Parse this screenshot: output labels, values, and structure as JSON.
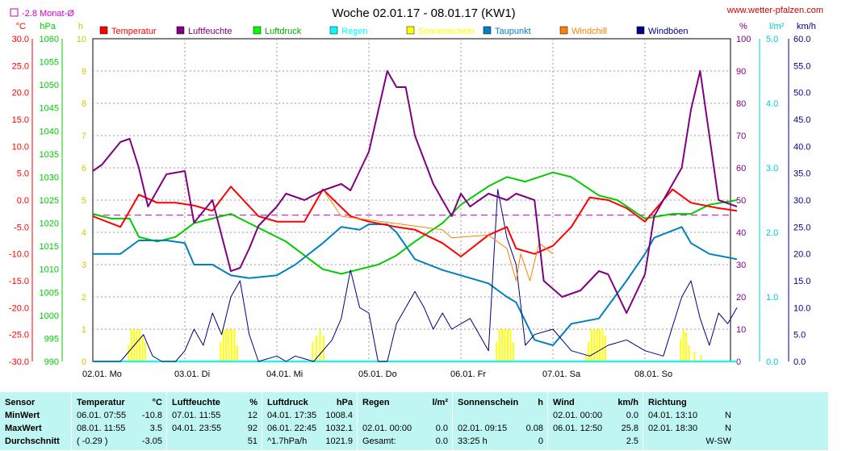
{
  "header": {
    "title": "Woche 02.01.17 - 08.01.17 (KW1)",
    "site": "www.wetter-pfalzen.com",
    "monthavg_label": "-2.8 Monat-Ø"
  },
  "axes": {
    "temp": {
      "unit": "°C",
      "ticks": [
        "30.0",
        "25.0",
        "20.0",
        "15.0",
        "10.0",
        "5.0",
        "0.0",
        "-5.0",
        "-10.0",
        "-15.0",
        "-20.0",
        "-25.0",
        "-30.0"
      ],
      "color": "#ff0000"
    },
    "press": {
      "unit": "hPa",
      "ticks": [
        "1060",
        "1055",
        "1050",
        "1045",
        "1040",
        "1035",
        "1030",
        "1025",
        "1020",
        "1015",
        "1010",
        "1005",
        "1000",
        "995",
        "990"
      ],
      "color": "#00cc00"
    },
    "sun": {
      "unit": "h",
      "ticks": [
        "10",
        "9",
        "8",
        "7",
        "6",
        "5",
        "4",
        "3",
        "2",
        "1",
        "0"
      ],
      "color": "#cccc00"
    },
    "hum": {
      "unit": "%",
      "ticks": [
        "100",
        "90",
        "80",
        "70",
        "60",
        "50",
        "40",
        "30",
        "20",
        "10",
        "0"
      ],
      "color": "#800080"
    },
    "rain": {
      "unit": "l/m²",
      "ticks": [
        "5.0",
        "4.0",
        "3.0",
        "2.0",
        "1.0",
        "0.0"
      ],
      "color": "#00cccc"
    },
    "wind": {
      "unit": "km/h",
      "ticks": [
        "60.0",
        "55.0",
        "50.0",
        "45.0",
        "40.0",
        "35.0",
        "30.0",
        "25.0",
        "20.0",
        "15.0",
        "10.0",
        "5.0",
        "0.0"
      ],
      "color": "#000080"
    }
  },
  "legend": [
    {
      "label": "Temperatur",
      "color": "#ff0000"
    },
    {
      "label": "Luftfeuchte",
      "color": "#800080"
    },
    {
      "label": "Luftdruck",
      "color": "#00ff00"
    },
    {
      "label": "Regen",
      "color": "#00ffff"
    },
    {
      "label": "Sonnenschein",
      "color": "#ffff00"
    },
    {
      "label": "Taupunkt",
      "color": "#0080c0"
    },
    {
      "label": "Windchill",
      "color": "#ff8000"
    },
    {
      "label": "Windböen",
      "color": "#000080"
    }
  ],
  "chart_data": {
    "type": "line",
    "title": "Woche 02.01.17 - 08.01.17 (KW1)",
    "x_categories": [
      "02.01. Mo",
      "03.01. Di",
      "04.01. Mi",
      "05.01. Do",
      "06.01. Fr",
      "07.01. Sa",
      "08.01. So"
    ],
    "xlim_days": [
      0,
      7
    ],
    "monthly_avg_temp": -2.8,
    "series": [
      {
        "name": "Temperatur",
        "axis": "temp",
        "color": "#ff0000",
        "t": [
          0,
          0.3,
          0.5,
          0.7,
          0.9,
          1.1,
          1.3,
          1.5,
          1.8,
          2.0,
          2.3,
          2.5,
          2.8,
          3.0,
          3.3,
          3.5,
          3.8,
          4.0,
          4.3,
          4.5,
          4.6,
          4.8,
          5.0,
          5.2,
          5.4,
          5.6,
          5.8,
          6.0,
          6.3,
          6.5,
          6.8,
          7.0
        ],
        "v": [
          -3,
          -5,
          1,
          -0.5,
          -0.5,
          -1,
          -2,
          2.5,
          -3,
          -4,
          -4,
          2,
          -3,
          -4,
          -5,
          -5.5,
          -8,
          -10.5,
          -6.5,
          -5,
          -9,
          -10,
          -8.5,
          -5,
          0.5,
          0,
          -1.5,
          -4,
          2,
          -0.5,
          -1.5,
          -2
        ]
      },
      {
        "name": "Luftfeuchte",
        "axis": "hum",
        "color": "#800080",
        "t": [
          0,
          0.1,
          0.3,
          0.4,
          0.5,
          0.6,
          0.8,
          1.0,
          1.1,
          1.3,
          1.5,
          1.6,
          1.7,
          1.8,
          2.0,
          2.1,
          2.3,
          2.5,
          2.7,
          2.8,
          3.0,
          3.2,
          3.3,
          3.4,
          3.5,
          3.7,
          3.9,
          4.0,
          4.1,
          4.3,
          4.5,
          4.6,
          4.8,
          4.9,
          5.1,
          5.3,
          5.5,
          5.6,
          5.8,
          6.0,
          6.1,
          6.3,
          6.4,
          6.5,
          6.6,
          6.8,
          7.0
        ],
        "v": [
          59,
          61,
          68,
          69,
          60,
          48,
          58,
          59,
          43,
          50,
          28,
          29,
          35,
          42,
          48,
          52,
          50,
          53,
          55,
          53,
          65,
          90,
          85,
          85,
          70,
          55,
          45,
          52,
          48,
          52,
          50,
          52,
          50,
          25,
          20,
          22,
          28,
          27,
          15,
          27,
          45,
          55,
          60,
          78,
          90,
          50,
          48
        ]
      },
      {
        "name": "Luftdruck",
        "axis": "press",
        "color": "#00cc00",
        "t": [
          0,
          0.2,
          0.4,
          0.5,
          0.7,
          0.9,
          1.1,
          1.3,
          1.5,
          1.7,
          1.9,
          2.1,
          2.3,
          2.5,
          2.7,
          2.9,
          3.1,
          3.3,
          3.5,
          3.8,
          4.0,
          4.3,
          4.5,
          4.7,
          5.0,
          5.2,
          5.5,
          5.7,
          6.0,
          6.3,
          6.5,
          6.7,
          7.0
        ],
        "v": [
          1022,
          1021,
          1021,
          1017,
          1016,
          1017,
          1020,
          1021,
          1022,
          1020,
          1018,
          1016,
          1013,
          1010,
          1009,
          1010,
          1011,
          1013,
          1016,
          1020,
          1024,
          1028,
          1030,
          1029,
          1031,
          1030,
          1026,
          1025,
          1021,
          1022,
          1022,
          1024,
          1025
        ]
      },
      {
        "name": "Taupunkt",
        "axis": "temp",
        "color": "#0080c0",
        "t": [
          0,
          0.3,
          0.5,
          0.8,
          1.0,
          1.1,
          1.3,
          1.5,
          1.7,
          2.0,
          2.2,
          2.5,
          2.7,
          2.9,
          3.0,
          3.2,
          3.3,
          3.5,
          3.8,
          4.0,
          4.3,
          4.5,
          4.6,
          4.8,
          5.0,
          5.2,
          5.5,
          5.8,
          6.0,
          6.1,
          6.4,
          6.5,
          6.7,
          7.0
        ],
        "v": [
          -10,
          -10,
          -7.5,
          -7.5,
          -8,
          -12,
          -12,
          -14,
          -14.5,
          -14,
          -12,
          -8,
          -5,
          -5.5,
          -4.5,
          -4.5,
          -6,
          -11,
          -13,
          -14,
          -15.5,
          -18,
          -19,
          -26,
          -27,
          -23,
          -22,
          -15,
          -10,
          -7,
          -5,
          -8,
          -10,
          -11
        ]
      },
      {
        "name": "Windböen",
        "axis": "wind",
        "color": "#000080",
        "t": [
          0,
          0.3,
          0.45,
          0.55,
          0.65,
          0.75,
          0.9,
          1.0,
          1.1,
          1.2,
          1.3,
          1.4,
          1.5,
          1.6,
          1.7,
          1.8,
          2.0,
          2.1,
          2.2,
          2.4,
          2.6,
          2.7,
          2.8,
          2.9,
          3.0,
          3.1,
          3.2,
          3.3,
          3.5,
          3.6,
          3.7,
          3.8,
          3.9,
          4.0,
          4.1,
          4.3,
          4.4,
          4.5,
          4.6,
          4.7,
          4.8,
          5.0,
          5.2,
          5.4,
          5.6,
          5.8,
          6.0,
          6.2,
          6.4,
          6.5,
          6.6,
          6.7,
          6.8,
          6.9,
          7.0
        ],
        "v": [
          0,
          0,
          3,
          5,
          1,
          0,
          0,
          2,
          6,
          3,
          9,
          5,
          12,
          15,
          5,
          0,
          1,
          0,
          1,
          0,
          4,
          8,
          17,
          10,
          9,
          0,
          0,
          7,
          13,
          10,
          6,
          9,
          6,
          7,
          8,
          2,
          32,
          23,
          18,
          3,
          5,
          6,
          2,
          1,
          3,
          4,
          2,
          1,
          12,
          15,
          8,
          3,
          9,
          7,
          10
        ]
      },
      {
        "name": "Windchill",
        "axis": "temp",
        "color": "#ff8000",
        "t": [
          2.5,
          2.6,
          2.7,
          3.8,
          3.9,
          4.3,
          4.5,
          4.6,
          4.65,
          4.75,
          4.85,
          5.0
        ],
        "v": [
          2,
          -0.5,
          -3,
          -5.5,
          -7,
          -6.5,
          -9,
          -15,
          -10,
          -15,
          -8,
          -10
        ]
      },
      {
        "name": "Sonnenschein",
        "axis": "sun",
        "color": "#ffff00",
        "type": "bar",
        "t": [
          0.38,
          0.41,
          0.44,
          0.47,
          0.5,
          0.53,
          0.56,
          1.38,
          1.41,
          1.44,
          1.47,
          1.5,
          1.53,
          1.56,
          2.38,
          2.42,
          2.46,
          2.5,
          4.38,
          4.41,
          4.44,
          4.47,
          4.5,
          4.53,
          4.56,
          5.35,
          5.38,
          5.41,
          5.44,
          5.47,
          5.5,
          5.53,
          5.56,
          6.38,
          6.41,
          6.44,
          6.47,
          6.53,
          6.6
        ],
        "v": [
          0.5,
          1,
          1,
          1,
          1,
          0.8,
          0.6,
          0.6,
          1,
          1,
          1,
          1,
          1,
          0.5,
          0.6,
          0.8,
          1,
          0.8,
          0.6,
          1,
          1,
          1,
          1,
          1,
          0.6,
          0.2,
          0.6,
          1,
          1,
          1,
          1,
          1,
          0.8,
          0.7,
          1,
          0.9,
          0.5,
          0.3,
          0.2
        ]
      },
      {
        "name": "Regen",
        "axis": "rain",
        "color": "#00ffff",
        "t": [
          0,
          7
        ],
        "v": [
          0,
          0
        ]
      }
    ]
  },
  "stats": {
    "sensor": {
      "head": "Sensor",
      "min": "MinWert",
      "max": "MaxWert",
      "avg": "Durchschnitt"
    },
    "temp": {
      "head": "Temperatur",
      "unit": "°C",
      "min_t": "06.01.  07:55",
      "min_v": "-10.8",
      "max_t": "08.01.  11:55",
      "max_v": "3.5",
      "avg_t": "( -0.29 )",
      "avg_v": "-3.05"
    },
    "hum": {
      "head": "Luftfeuchte",
      "unit": "%",
      "min_t": "07.01.  11:55",
      "min_v": "12",
      "max_t": "04.01.  23:55",
      "max_v": "92",
      "avg_v": "51"
    },
    "press": {
      "head": "Luftdruck",
      "unit": "hPa",
      "min_t": "04.01.  17:35",
      "min_v": "1008.4",
      "max_t": "06.01.  22:45",
      "max_v": "1032.1",
      "avg_t": "^1.7hPa/h",
      "avg_v": "1021.9"
    },
    "rain": {
      "head": "Regen",
      "unit": "l/m²",
      "max_t": "02.01.  00:00",
      "max_v": "0.0",
      "avg_t": "Gesamt:",
      "avg_v": "0.0"
    },
    "sun": {
      "head": "Sonnenschein",
      "unit": "h",
      "max_t": "02.01.  09:15",
      "max_v": "0.08",
      "avg_t": "33:25 h",
      "avg_v": "0"
    },
    "wind": {
      "head": "Wind",
      "unit": "km/h",
      "min_t": "02.01.  00:00",
      "min_v": "0.0",
      "max_t": "06.01.  12:50",
      "max_v": "25.8",
      "avg_v": "2.5"
    },
    "dir": {
      "head": "Richtung",
      "min_t": "04.01.  13:10",
      "min_v": "N",
      "max_t": "02.01.  18:30",
      "max_v": "N",
      "avg_v": "W-SW"
    }
  }
}
